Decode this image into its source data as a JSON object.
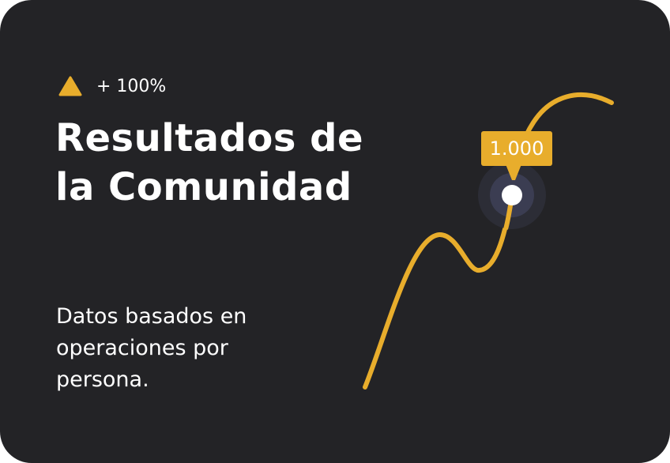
{
  "badge": {
    "icon": "triangle-up-icon",
    "text": "+ 100%"
  },
  "title": "Resultados de la Comunidad",
  "description": "Datos basados en operaciones por persona.",
  "chart": {
    "tooltip_value": "1.000",
    "line_color": "#e8ad2c",
    "background": "#232326"
  }
}
